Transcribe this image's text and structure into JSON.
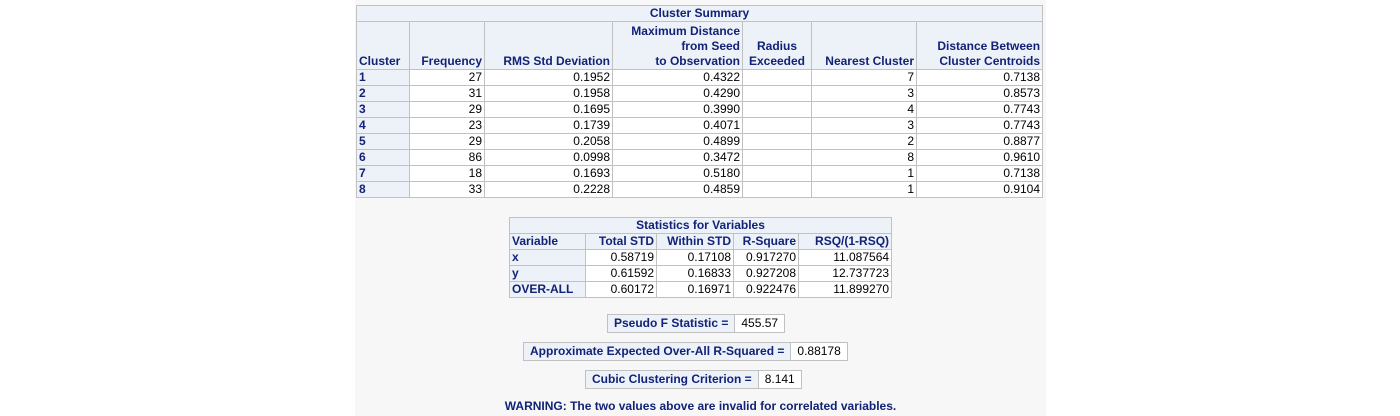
{
  "cluster_summary": {
    "title": "Cluster Summary",
    "headers": {
      "cluster": "Cluster",
      "frequency": "Frequency",
      "rms": "RMS Std Deviation",
      "maxdist_l1": "Maximum Distance",
      "maxdist_l2": "from Seed",
      "maxdist_l3": "to Observation",
      "radius_l1": "Radius",
      "radius_l2": "Exceeded",
      "nearest": "Nearest Cluster",
      "dist_l1": "Distance Between",
      "dist_l2": "Cluster Centroids"
    },
    "rows": [
      {
        "cluster": "1",
        "frequency": "27",
        "rms": "0.1952",
        "maxdist": "0.4322",
        "radius": "",
        "nearest": "7",
        "dist": "0.7138"
      },
      {
        "cluster": "2",
        "frequency": "31",
        "rms": "0.1958",
        "maxdist": "0.4290",
        "radius": "",
        "nearest": "3",
        "dist": "0.8573"
      },
      {
        "cluster": "3",
        "frequency": "29",
        "rms": "0.1695",
        "maxdist": "0.3990",
        "radius": "",
        "nearest": "4",
        "dist": "0.7743"
      },
      {
        "cluster": "4",
        "frequency": "23",
        "rms": "0.1739",
        "maxdist": "0.4071",
        "radius": "",
        "nearest": "3",
        "dist": "0.7743"
      },
      {
        "cluster": "5",
        "frequency": "29",
        "rms": "0.2058",
        "maxdist": "0.4899",
        "radius": "",
        "nearest": "2",
        "dist": "0.8877"
      },
      {
        "cluster": "6",
        "frequency": "86",
        "rms": "0.0998",
        "maxdist": "0.3472",
        "radius": "",
        "nearest": "8",
        "dist": "0.9610"
      },
      {
        "cluster": "7",
        "frequency": "18",
        "rms": "0.1693",
        "maxdist": "0.5180",
        "radius": "",
        "nearest": "1",
        "dist": "0.7138"
      },
      {
        "cluster": "8",
        "frequency": "33",
        "rms": "0.2228",
        "maxdist": "0.4859",
        "radius": "",
        "nearest": "1",
        "dist": "0.9104"
      }
    ]
  },
  "stats_vars": {
    "title": "Statistics for Variables",
    "headers": {
      "variable": "Variable",
      "total_std": "Total STD",
      "within_std": "Within STD",
      "rsq": "R-Square",
      "rsq_ratio": "RSQ/(1-RSQ)"
    },
    "rows": [
      {
        "variable": "x",
        "total_std": "0.58719",
        "within_std": "0.17108",
        "rsq": "0.917270",
        "rsq_ratio": "11.087564"
      },
      {
        "variable": "y",
        "total_std": "0.61592",
        "within_std": "0.16833",
        "rsq": "0.927208",
        "rsq_ratio": "12.737723"
      },
      {
        "variable": "OVER-ALL",
        "total_std": "0.60172",
        "within_std": "0.16971",
        "rsq": "0.922476",
        "rsq_ratio": "11.899270"
      }
    ]
  },
  "pseudo_f": {
    "label": "Pseudo F Statistic =",
    "value": "455.57"
  },
  "expected_rsq": {
    "label": "Approximate Expected Over-All R-Squared =",
    "value": "0.88178"
  },
  "ccc": {
    "label": "Cubic Clustering Criterion =",
    "value": "8.141"
  },
  "warning": "WARNING: The two values above are invalid for correlated variables."
}
